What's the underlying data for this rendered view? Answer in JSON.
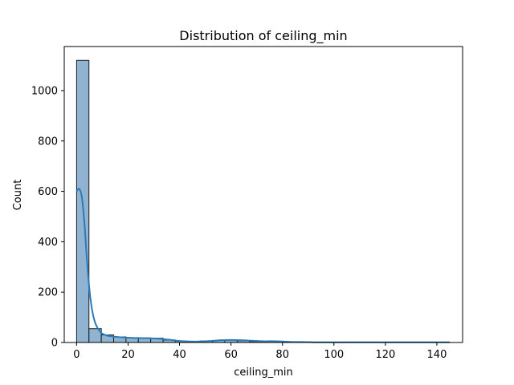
{
  "chart_data": {
    "type": "bar",
    "title": "Distribution of ceiling_min",
    "xlabel": "ceiling_min",
    "ylabel": "Count",
    "xlim": [
      -4.8,
      150
    ],
    "ylim": [
      0,
      1175
    ],
    "xticks": [
      0,
      20,
      40,
      60,
      80,
      100,
      120,
      140
    ],
    "yticks": [
      0,
      200,
      400,
      600,
      800,
      1000
    ],
    "bin_width": 4.8,
    "bins": [
      {
        "x0": 0.0,
        "x1": 4.8,
        "count": 1120
      },
      {
        "x0": 4.8,
        "x1": 9.6,
        "count": 55
      },
      {
        "x0": 9.6,
        "x1": 14.4,
        "count": 30
      },
      {
        "x0": 14.4,
        "x1": 19.2,
        "count": 22
      },
      {
        "x0": 19.2,
        "x1": 24.0,
        "count": 18
      },
      {
        "x0": 24.0,
        "x1": 28.8,
        "count": 18
      },
      {
        "x0": 28.8,
        "x1": 33.6,
        "count": 17
      },
      {
        "x0": 33.6,
        "x1": 38.4,
        "count": 10
      },
      {
        "x0": 38.4,
        "x1": 43.2,
        "count": 5
      },
      {
        "x0": 43.2,
        "x1": 48.0,
        "count": 4
      },
      {
        "x0": 48.0,
        "x1": 52.8,
        "count": 6
      },
      {
        "x0": 52.8,
        "x1": 57.6,
        "count": 8
      },
      {
        "x0": 57.6,
        "x1": 62.4,
        "count": 10
      },
      {
        "x0": 62.4,
        "x1": 67.2,
        "count": 7
      },
      {
        "x0": 67.2,
        "x1": 72.0,
        "count": 4
      },
      {
        "x0": 72.0,
        "x1": 76.8,
        "count": 5
      },
      {
        "x0": 76.8,
        "x1": 81.6,
        "count": 3
      },
      {
        "x0": 81.6,
        "x1": 86.4,
        "count": 2
      },
      {
        "x0": 86.4,
        "x1": 91.2,
        "count": 1
      },
      {
        "x0": 91.2,
        "x1": 96.0,
        "count": 1
      },
      {
        "x0": 96.0,
        "x1": 100.8,
        "count": 1
      },
      {
        "x0": 100.8,
        "x1": 105.6,
        "count": 1
      },
      {
        "x0": 105.6,
        "x1": 110.4,
        "count": 1
      },
      {
        "x0": 110.4,
        "x1": 115.2,
        "count": 1
      },
      {
        "x0": 115.2,
        "x1": 120.0,
        "count": 0
      },
      {
        "x0": 120.0,
        "x1": 124.8,
        "count": 1
      },
      {
        "x0": 124.8,
        "x1": 129.6,
        "count": 0
      },
      {
        "x0": 129.6,
        "x1": 134.4,
        "count": 0
      },
      {
        "x0": 134.4,
        "x1": 139.2,
        "count": 1
      },
      {
        "x0": 139.2,
        "x1": 144.0,
        "count": 1
      }
    ],
    "kde": {
      "x": [
        0,
        1,
        2,
        3,
        4,
        5,
        6,
        7,
        8,
        9,
        10,
        12,
        14,
        16,
        18,
        20,
        22,
        24,
        26,
        28,
        30,
        32,
        34,
        36,
        38,
        40,
        44,
        48,
        52,
        56,
        60,
        64,
        68,
        72,
        76,
        80,
        84,
        88,
        92,
        96,
        100,
        110,
        120,
        130,
        140,
        145
      ],
      "y": [
        600,
        610,
        580,
        480,
        330,
        210,
        130,
        85,
        60,
        45,
        35,
        27,
        24,
        22,
        20,
        19,
        18,
        18,
        17,
        17,
        16,
        15,
        13,
        11,
        8,
        6,
        4,
        4,
        6,
        9,
        10,
        9,
        7,
        5,
        5,
        4,
        2,
        2,
        1,
        1,
        1,
        1,
        1,
        1,
        1,
        1
      ]
    },
    "bar_color": "#8fb3d1",
    "bar_edge_color": "#1a1a1a",
    "line_color": "#2b7bb9",
    "grid": false,
    "legend": "none"
  }
}
